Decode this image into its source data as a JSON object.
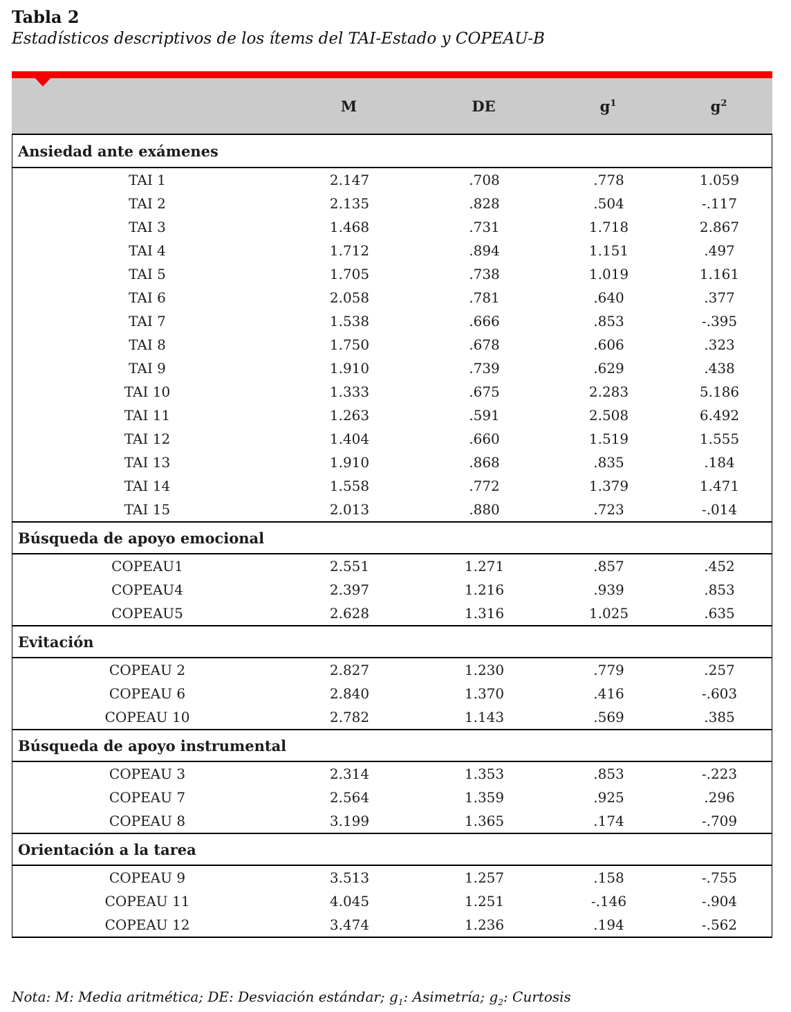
{
  "page": {
    "title": "Tabla 2",
    "subtitle": "Estadísticos descriptivos de los ítems del TAI-Estado y COPEAU-B"
  },
  "colors": {
    "accent_red": "#f40000",
    "header_gray": "#cbcbcb"
  },
  "table": {
    "columns": [
      {
        "label": ""
      },
      {
        "label": "M"
      },
      {
        "label": "DE"
      },
      {
        "label": "g",
        "sup": "1"
      },
      {
        "label": "g",
        "sup": "2"
      }
    ],
    "sections": [
      {
        "title": "Ansiedad ante exámenes",
        "rows": [
          {
            "item": "TAI 1",
            "m": "2.147",
            "de": ".708",
            "g1": ".778",
            "g2": "1.059"
          },
          {
            "item": "TAI 2",
            "m": "2.135",
            "de": ".828",
            "g1": ".504",
            "g2": "-.117"
          },
          {
            "item": "TAI 3",
            "m": "1.468",
            "de": ".731",
            "g1": "1.718",
            "g2": "2.867"
          },
          {
            "item": "TAI 4",
            "m": "1.712",
            "de": ".894",
            "g1": "1.151",
            "g2": ".497"
          },
          {
            "item": "TAI 5",
            "m": "1.705",
            "de": ".738",
            "g1": "1.019",
            "g2": "1.161"
          },
          {
            "item": "TAI 6",
            "m": "2.058",
            "de": ".781",
            "g1": ".640",
            "g2": ".377"
          },
          {
            "item": "TAI 7",
            "m": "1.538",
            "de": ".666",
            "g1": ".853",
            "g2": "-.395"
          },
          {
            "item": "TAI 8",
            "m": "1.750",
            "de": ".678",
            "g1": ".606",
            "g2": ".323"
          },
          {
            "item": "TAI 9",
            "m": "1.910",
            "de": ".739",
            "g1": ".629",
            "g2": ".438"
          },
          {
            "item": "TAI 10",
            "m": "1.333",
            "de": ".675",
            "g1": "2.283",
            "g2": "5.186"
          },
          {
            "item": "TAI 11",
            "m": "1.263",
            "de": ".591",
            "g1": "2.508",
            "g2": "6.492"
          },
          {
            "item": "TAI 12",
            "m": "1.404",
            "de": ".660",
            "g1": "1.519",
            "g2": "1.555"
          },
          {
            "item": "TAI 13",
            "m": "1.910",
            "de": ".868",
            "g1": ".835",
            "g2": ".184"
          },
          {
            "item": "TAI 14",
            "m": "1.558",
            "de": ".772",
            "g1": "1.379",
            "g2": "1.471"
          },
          {
            "item": "TAI 15",
            "m": "2.013",
            "de": ".880",
            "g1": ".723",
            "g2": "-.014"
          }
        ]
      },
      {
        "title": "Búsqueda de apoyo emocional",
        "rows": [
          {
            "item": "COPEAU1",
            "m": "2.551",
            "de": "1.271",
            "g1": ".857",
            "g2": ".452"
          },
          {
            "item": "COPEAU4",
            "m": "2.397",
            "de": "1.216",
            "g1": ".939",
            "g2": ".853"
          },
          {
            "item": "COPEAU5",
            "m": "2.628",
            "de": "1.316",
            "g1": "1.025",
            "g2": ".635"
          }
        ]
      },
      {
        "title": "Evitación",
        "rows": [
          {
            "item": "COPEAU 2",
            "m": "2.827",
            "de": "1.230",
            "g1": ".779",
            "g2": ".257"
          },
          {
            "item": "COPEAU 6",
            "m": "2.840",
            "de": "1.370",
            "g1": ".416",
            "g2": "-.603"
          },
          {
            "item": "COPEAU 10",
            "m": "2.782",
            "de": "1.143",
            "g1": ".569",
            "g2": ".385"
          }
        ]
      },
      {
        "title": "Búsqueda de apoyo instrumental",
        "rows": [
          {
            "item": "COPEAU 3",
            "m": "2.314",
            "de": "1.353",
            "g1": ".853",
            "g2": "-.223"
          },
          {
            "item": "COPEAU 7",
            "m": "2.564",
            "de": "1.359",
            "g1": ".925",
            "g2": ".296"
          },
          {
            "item": "COPEAU 8",
            "m": "3.199",
            "de": "1.365",
            "g1": ".174",
            "g2": "-.709"
          }
        ]
      },
      {
        "title": "Orientación a la tarea",
        "rows": [
          {
            "item": "COPEAU 9",
            "m": "3.513",
            "de": "1.257",
            "g1": ".158",
            "g2": "-.755"
          },
          {
            "item": "COPEAU 11",
            "m": "4.045",
            "de": "1.251",
            "g1": "-.146",
            "g2": "-.904"
          },
          {
            "item": "COPEAU 12",
            "m": "3.474",
            "de": "1.236",
            "g1": ".194",
            "g2": "-.562"
          }
        ]
      }
    ]
  },
  "note": {
    "parts": [
      {
        "text": "Nota: M: Media aritmética; DE: Desviación estándar; "
      },
      {
        "text": "g"
      },
      {
        "sub": "1"
      },
      {
        "text": ": Asimetría; "
      },
      {
        "text": "g"
      },
      {
        "sub": "2"
      },
      {
        "text": ": Curtosis"
      }
    ]
  }
}
